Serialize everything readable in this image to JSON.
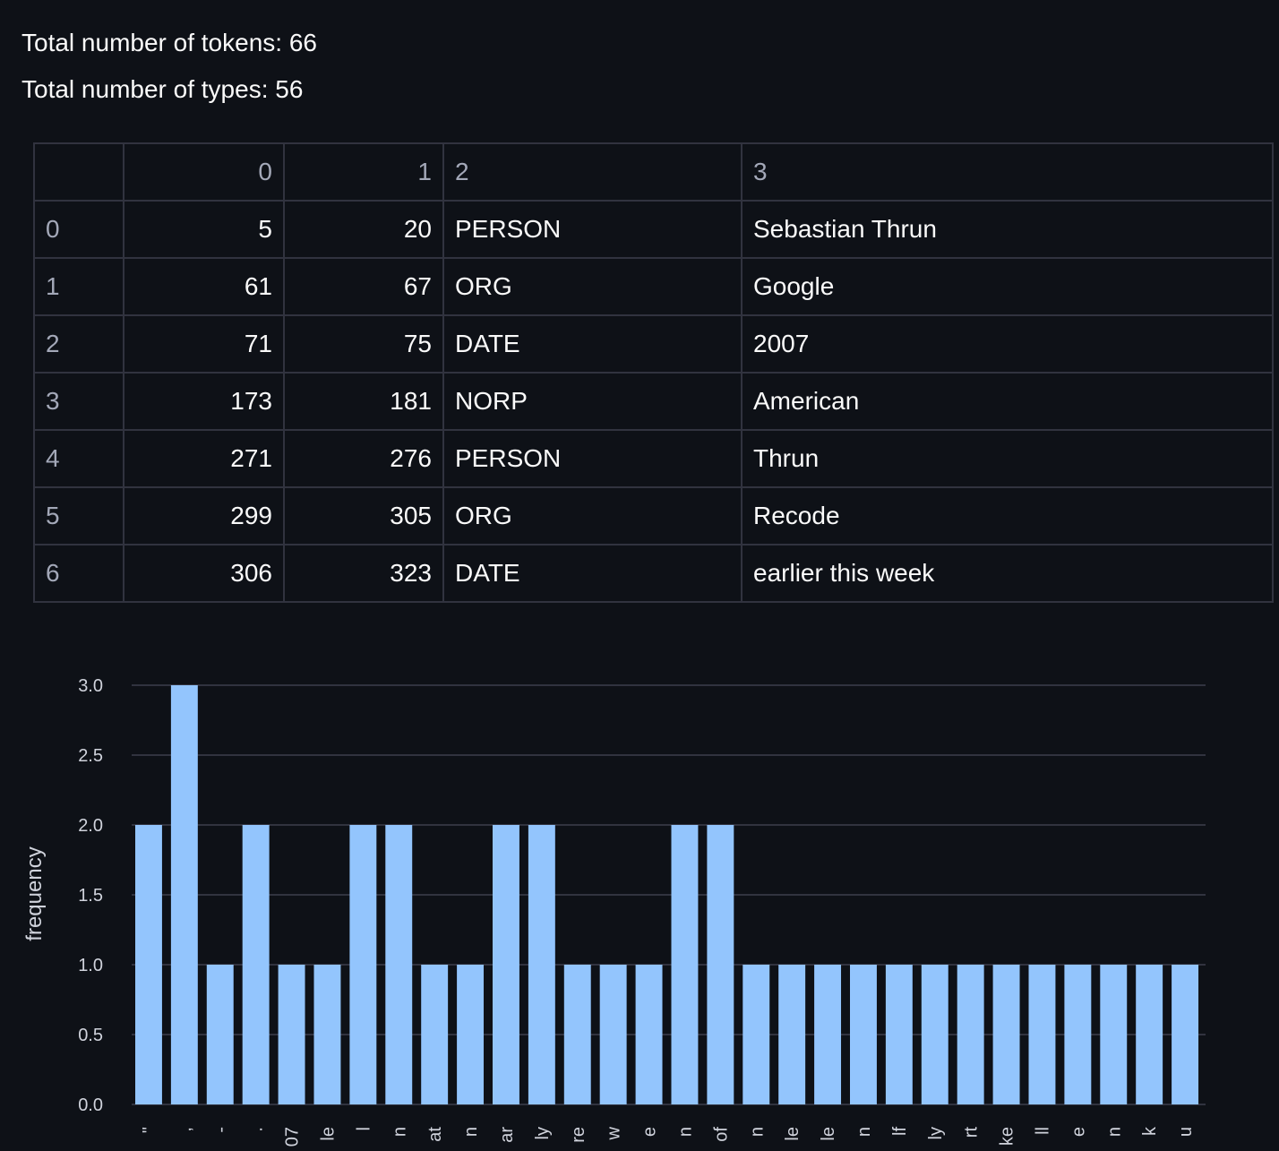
{
  "stats": {
    "tokens_line": "Total number of tokens: 66",
    "types_line": "Total number of types: 56"
  },
  "table": {
    "headers": [
      "",
      "0",
      "1",
      "2",
      "3"
    ],
    "rows": [
      [
        "0",
        "5",
        "20",
        "PERSON",
        "Sebastian Thrun"
      ],
      [
        "1",
        "61",
        "67",
        "ORG",
        "Google"
      ],
      [
        "2",
        "71",
        "75",
        "DATE",
        "2007"
      ],
      [
        "3",
        "173",
        "181",
        "NORP",
        "American"
      ],
      [
        "4",
        "271",
        "276",
        "PERSON",
        "Thrun"
      ],
      [
        "5",
        "299",
        "305",
        "ORG",
        "Recode"
      ],
      [
        "6",
        "306",
        "323",
        "DATE",
        "earlier this week"
      ]
    ]
  },
  "chart_data": {
    "type": "bar",
    "ylabel": "frequency",
    "xlabel": "",
    "ylim": [
      0,
      3.0
    ],
    "yticks": [
      "0.0",
      "0.5",
      "1.0",
      "1.5",
      "2.0",
      "2.5",
      "3.0"
    ],
    "categories": [
      "\"",
      ",",
      "-",
      ".",
      "07",
      "le",
      "l",
      "n",
      "at",
      "n",
      "ar",
      "ly",
      "re",
      "w",
      "e",
      "n",
      "of",
      "n",
      "le",
      "le",
      "n",
      "lf",
      "ly",
      "rt",
      "ke",
      "ll",
      "e",
      "n",
      "k",
      "u"
    ],
    "values": [
      2,
      3,
      1,
      2,
      1,
      1,
      2,
      2,
      1,
      1,
      2,
      2,
      1,
      1,
      1,
      2,
      2,
      1,
      1,
      1,
      1,
      1,
      1,
      1,
      1,
      1,
      1,
      1,
      1,
      1
    ],
    "colors": {
      "bar": "#93c5fd",
      "grid": "#31333f",
      "axis_text": "#d0d3dc",
      "background": "#0e1117"
    }
  }
}
